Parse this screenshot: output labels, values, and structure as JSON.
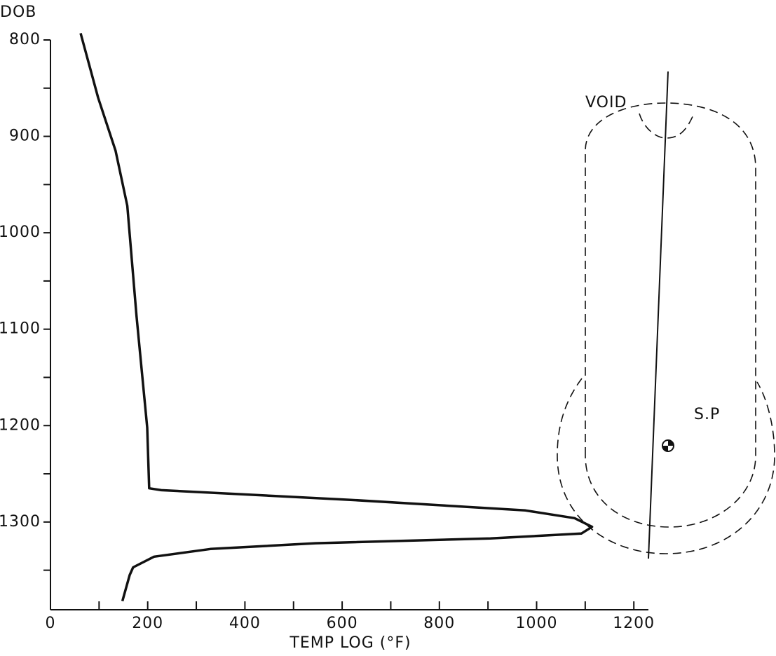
{
  "chart_data": {
    "type": "line",
    "y_axis_label": "DOB",
    "x_axis_label": "TEMP LOG (°F)",
    "xlim": [
      0,
      1230
    ],
    "ylim": [
      800,
      1391
    ],
    "y_inverted": true,
    "xticks": [
      0,
      200,
      400,
      600,
      800,
      1000,
      1200
    ],
    "x_minor_ticks": [
      100,
      300,
      500,
      700,
      900,
      1100
    ],
    "yticks": [
      800,
      900,
      1000,
      1100,
      1200,
      1300
    ],
    "y_minor_ticks": [
      850,
      950,
      1050,
      1150,
      1250,
      1350
    ],
    "color": "#111",
    "x": [
      62,
      98,
      134,
      158,
      177,
      199,
      203,
      228,
      617,
      977,
      1078,
      1114,
      1092,
      905,
      545,
      329,
      213,
      170,
      163,
      148
    ],
    "values": [
      793,
      860,
      915,
      972,
      1086,
      1202,
      1265,
      1267,
      1277,
      1288,
      1296,
      1305,
      1312,
      1317,
      1322,
      1328,
      1336,
      1347,
      1355,
      1382
    ],
    "annotations": [
      "VOID",
      "S.P"
    ]
  }
}
